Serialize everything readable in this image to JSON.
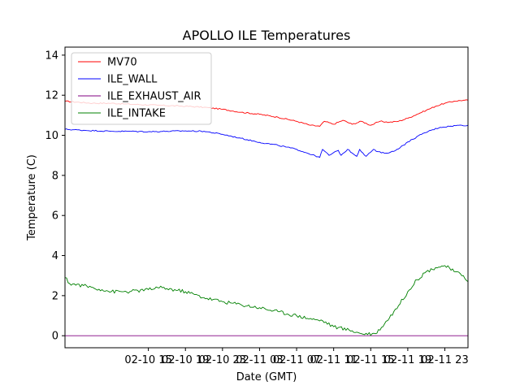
{
  "chart_data": {
    "type": "line",
    "title": "APOLLO ILE Temperatures",
    "xlabel": "Date (GMT)",
    "ylabel": "Temperature (C)",
    "xlim": [
      -5,
      38.5
    ],
    "ylim": [
      -0.6,
      14.4
    ],
    "x_unit": "hours since 02-10 11:00 GMT",
    "x_ticks": [
      {
        "value": 4,
        "label": "02-10 15"
      },
      {
        "value": 8,
        "label": "02-10 19"
      },
      {
        "value": 12,
        "label": "02-10 23"
      },
      {
        "value": 16,
        "label": "02-11 03"
      },
      {
        "value": 20,
        "label": "02-11 07"
      },
      {
        "value": 24,
        "label": "02-11 11"
      },
      {
        "value": 28,
        "label": "02-11 15"
      },
      {
        "value": 32,
        "label": "02-11 19"
      },
      {
        "value": 36,
        "label": "02-11 23"
      }
    ],
    "y_ticks": [
      {
        "value": 0,
        "label": "0"
      },
      {
        "value": 2,
        "label": "2"
      },
      {
        "value": 4,
        "label": "4"
      },
      {
        "value": 6,
        "label": "6"
      },
      {
        "value": 8,
        "label": "8"
      },
      {
        "value": 10,
        "label": "10"
      },
      {
        "value": 12,
        "label": "12"
      },
      {
        "value": 14,
        "label": "14"
      }
    ],
    "legend_position": "top-left",
    "series": [
      {
        "name": "MV70",
        "color": "#ff0000",
        "x": [
          -5,
          -2,
          0,
          2,
          5,
          8,
          10,
          12,
          14,
          16,
          18,
          20,
          21.5,
          22.5,
          23,
          24,
          25,
          26,
          27,
          28,
          29,
          30,
          31,
          32,
          33,
          34,
          35,
          36,
          37,
          38,
          38.5
        ],
        "y": [
          11.7,
          11.6,
          11.6,
          11.55,
          11.5,
          11.45,
          11.4,
          11.3,
          11.15,
          11.05,
          10.9,
          10.7,
          10.5,
          10.45,
          10.7,
          10.55,
          10.75,
          10.55,
          10.7,
          10.5,
          10.7,
          10.65,
          10.7,
          10.85,
          11.05,
          11.25,
          11.45,
          11.6,
          11.7,
          11.75,
          11.75
        ]
      },
      {
        "name": "ILE_WALL",
        "color": "#0000ff",
        "x": [
          -5,
          -3,
          0,
          2,
          4,
          6,
          8,
          10,
          12,
          14,
          16,
          18,
          20,
          22.5,
          22.8,
          23.5,
          24.5,
          24.8,
          25.5,
          26.5,
          26.8,
          27.5,
          28.3,
          28.6,
          29.5,
          30.5,
          31.5,
          32.5,
          33.5,
          34.5,
          35.5,
          36.5,
          37.5,
          38.5
        ],
        "y": [
          10.3,
          10.25,
          10.2,
          10.2,
          10.18,
          10.2,
          10.22,
          10.2,
          10.05,
          9.85,
          9.65,
          9.5,
          9.3,
          8.9,
          9.3,
          9.0,
          9.25,
          9.0,
          9.3,
          8.95,
          9.3,
          8.95,
          9.3,
          9.2,
          9.1,
          9.2,
          9.5,
          9.8,
          10.05,
          10.25,
          10.4,
          10.45,
          10.5,
          10.5
        ]
      },
      {
        "name": "ILE_EXHAUST_AIR",
        "color": "#800080",
        "x": [
          -5,
          38.5
        ],
        "y": [
          0.0,
          0.0
        ]
      },
      {
        "name": "ILE_INTAKE",
        "color": "#008000",
        "x": [
          -5,
          -4.5,
          -3,
          -1,
          0,
          2,
          4,
          5,
          6,
          8,
          10,
          12,
          14,
          16,
          18,
          20,
          22,
          22.8,
          24,
          26,
          27,
          28.5,
          29.5,
          31,
          32,
          33,
          34,
          35,
          36,
          37,
          38,
          38.5
        ],
        "y": [
          2.9,
          2.6,
          2.5,
          2.3,
          2.2,
          2.2,
          2.3,
          2.4,
          2.35,
          2.2,
          1.9,
          1.7,
          1.55,
          1.4,
          1.2,
          1.0,
          0.8,
          0.75,
          0.45,
          0.25,
          0.1,
          0.1,
          0.6,
          1.5,
          2.2,
          2.8,
          3.2,
          3.4,
          3.5,
          3.2,
          3.0,
          2.7
        ]
      }
    ]
  }
}
